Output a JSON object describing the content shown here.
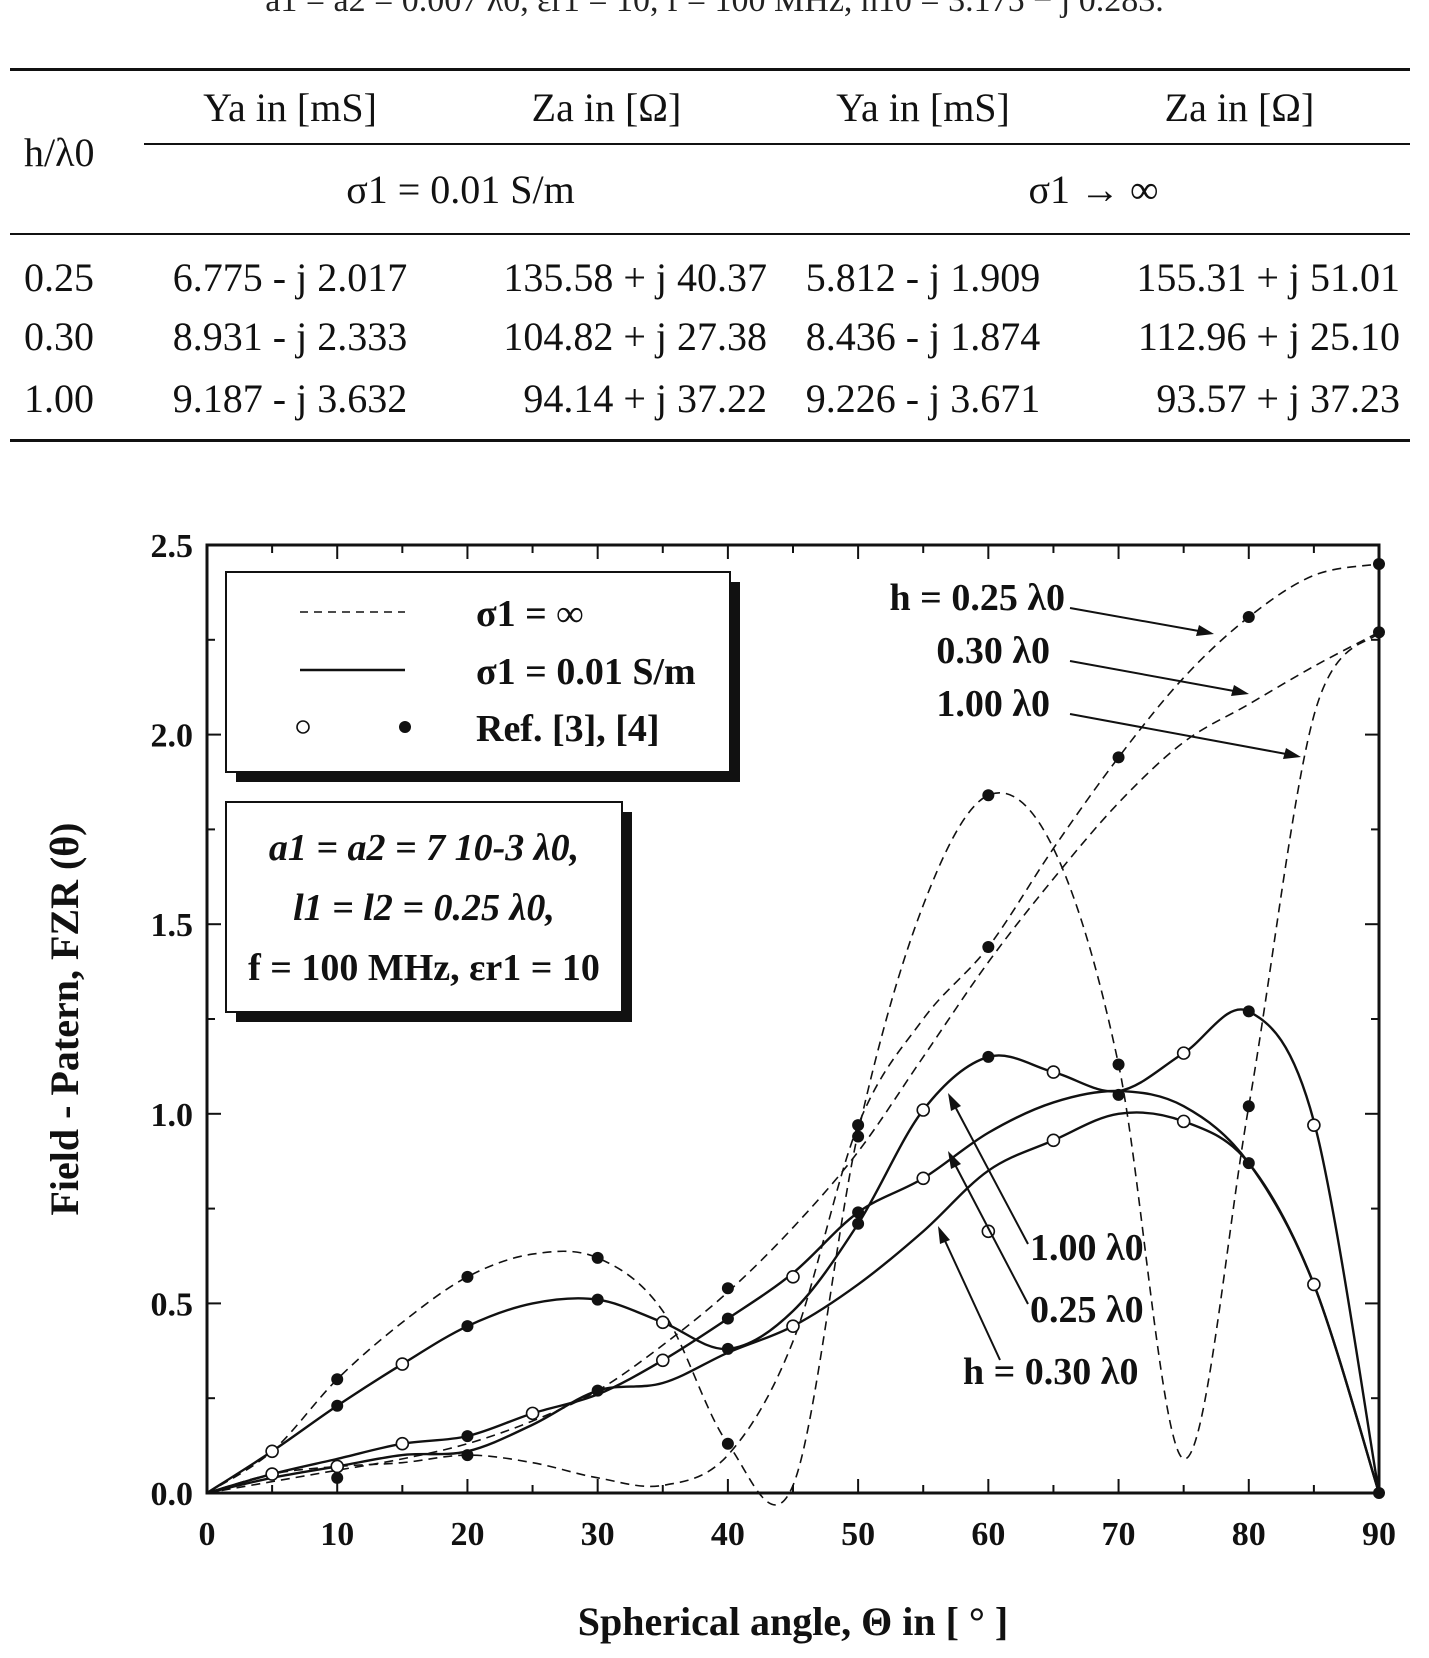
{
  "caption_partial": "a1 = a2 = 0.007 λ0,  εr1 = 10,  f = 100 MHz,  n10 = 3.175 − j 0.283.",
  "table": {
    "row_header": "h/λ0",
    "col_headers": [
      "Ya in [mS]",
      "Za in [Ω]",
      "Ya in [mS]",
      "Za in [Ω]"
    ],
    "group_left": "σ1 = 0.01 S/m",
    "group_right": "σ1 → ∞",
    "rows": [
      {
        "h": "0.25",
        "ya1": "6.775 - j 2.017",
        "za1": "135.58 + j 40.37",
        "ya2": "5.812 - j 1.909",
        "za2": "155.31 + j 51.01"
      },
      {
        "h": "0.30",
        "ya1": "8.931 - j 2.333",
        "za1": "104.82 + j 27.38",
        "ya2": "8.436 - j 1.874",
        "za2": "112.96 + j 25.10"
      },
      {
        "h": "1.00",
        "ya1": "9.187 - j 3.632",
        "za1": "94.14 + j 37.22",
        "ya2": "9.226 - j 3.671",
        "za2": "93.57 + j 37.23"
      }
    ]
  },
  "chart_data": {
    "type": "line",
    "xlabel": "Spherical angle, Θ in [ ° ]",
    "ylabel": "Field - Patern, FZR (θ)",
    "xlim": [
      0,
      90
    ],
    "ylim": [
      0,
      2.5
    ],
    "x_ticks": [
      "0",
      "10",
      "20",
      "30",
      "40",
      "50",
      "60",
      "70",
      "80",
      "90"
    ],
    "y_ticks": [
      "0.0",
      "0.5",
      "1.0",
      "1.5",
      "2.0",
      "2.5"
    ],
    "legend": {
      "placement": "top-left",
      "entries": [
        {
          "style": "dashed",
          "label": "σ1 = ∞"
        },
        {
          "style": "solid",
          "label": "σ1 = 0.01 S/m"
        },
        {
          "style": "markers",
          "label": "Ref. [3], [4]"
        }
      ]
    },
    "params_box": [
      "a1 = a2 = 7 10-3 λ0,",
      "l1 = l2 = 0.25 λ0,",
      "f = 100 MHz, εr1 = 10"
    ],
    "annotations_dashed": [
      "h = 0.25 λ0",
      "0.30 λ0",
      "1.00 λ0"
    ],
    "annotations_solid": [
      "1.00 λ0",
      "0.25 λ0",
      "h = 0.30 λ0"
    ],
    "series": [
      {
        "style": "dashed",
        "h": "0.25",
        "x": [
          0,
          5,
          10,
          15,
          20,
          25,
          30,
          35,
          40,
          45,
          50,
          55,
          60,
          65,
          70,
          75,
          80,
          85,
          90
        ],
        "y": [
          0,
          0.11,
          0.3,
          0.45,
          0.57,
          0.63,
          0.62,
          0.48,
          0.13,
          0.02,
          0.95,
          1.55,
          1.84,
          1.7,
          1.13,
          0.09,
          1.02,
          2.05,
          2.27
        ]
      },
      {
        "style": "dashed",
        "h": "0.30",
        "x": [
          0,
          5,
          10,
          15,
          20,
          25,
          30,
          35,
          40,
          45,
          50,
          55,
          60,
          65,
          70,
          75,
          80,
          85,
          90
        ],
        "y": [
          0,
          0.05,
          0.07,
          0.08,
          0.1,
          0.08,
          0.04,
          0.02,
          0.1,
          0.4,
          0.97,
          1.25,
          1.44,
          1.7,
          1.94,
          2.15,
          2.31,
          2.42,
          2.45
        ]
      },
      {
        "style": "dashed",
        "h": "1.00",
        "x": [
          0,
          5,
          10,
          15,
          20,
          25,
          30,
          35,
          40,
          45,
          50,
          55,
          60,
          65,
          70,
          75,
          80,
          85,
          90
        ],
        "y": [
          0,
          0.03,
          0.06,
          0.09,
          0.13,
          0.19,
          0.27,
          0.39,
          0.53,
          0.7,
          0.9,
          1.15,
          1.4,
          1.62,
          1.82,
          1.98,
          2.08,
          2.18,
          2.27
        ]
      },
      {
        "style": "solid",
        "h": "0.25",
        "x": [
          0,
          5,
          10,
          15,
          20,
          25,
          30,
          35,
          40,
          45,
          50,
          55,
          60,
          65,
          70,
          75,
          80,
          85,
          90
        ],
        "y": [
          0,
          0.11,
          0.23,
          0.34,
          0.44,
          0.5,
          0.51,
          0.45,
          0.38,
          0.48,
          0.71,
          1.01,
          1.15,
          1.11,
          1.06,
          1.16,
          1.27,
          0.98,
          0
        ]
      },
      {
        "style": "solid",
        "h": "0.30",
        "x": [
          0,
          5,
          10,
          15,
          20,
          25,
          30,
          35,
          40,
          45,
          50,
          55,
          60,
          65,
          70,
          75,
          80,
          85,
          90
        ],
        "y": [
          0,
          0.04,
          0.07,
          0.1,
          0.11,
          0.18,
          0.27,
          0.29,
          0.37,
          0.44,
          0.55,
          0.69,
          0.85,
          0.93,
          1.0,
          0.98,
          0.87,
          0.55,
          0
        ]
      },
      {
        "style": "solid",
        "h": "1.00",
        "x": [
          0,
          5,
          10,
          15,
          20,
          25,
          30,
          35,
          40,
          45,
          50,
          55,
          60,
          65,
          70,
          75,
          80,
          85,
          90
        ],
        "y": [
          0,
          0.05,
          0.09,
          0.13,
          0.15,
          0.21,
          0.26,
          0.35,
          0.46,
          0.58,
          0.74,
          0.83,
          0.95,
          1.03,
          1.06,
          1.02,
          0.87,
          0.55,
          0
        ]
      }
    ],
    "markers": [
      {
        "fill": "open",
        "x": [
          5,
          5,
          10,
          15,
          15,
          25,
          35,
          35,
          45,
          45,
          55,
          55,
          60,
          65,
          65,
          75,
          75,
          85,
          85
        ],
        "y": [
          0.11,
          0.05,
          0.07,
          0.34,
          0.13,
          0.21,
          0.45,
          0.35,
          0.57,
          0.44,
          1.01,
          0.83,
          0.69,
          0.93,
          1.11,
          1.16,
          0.98,
          0.97,
          0.55
        ]
      },
      {
        "fill": "filled",
        "x": [
          10,
          10,
          10,
          20,
          20,
          20,
          20,
          30,
          30,
          30,
          40,
          40,
          40,
          40,
          50,
          50,
          50,
          50,
          60,
          60,
          60,
          70,
          70,
          70,
          80,
          80,
          80,
          80,
          90,
          90,
          90
        ],
        "y": [
          0.3,
          0.23,
          0.04,
          0.57,
          0.44,
          0.15,
          0.1,
          0.62,
          0.51,
          0.27,
          0.54,
          0.46,
          0.38,
          0.13,
          0.97,
          0.94,
          0.74,
          0.71,
          1.84,
          1.44,
          1.15,
          1.94,
          1.13,
          1.05,
          2.31,
          1.27,
          1.02,
          0.87,
          2.45,
          2.27,
          0.0
        ]
      }
    ]
  }
}
